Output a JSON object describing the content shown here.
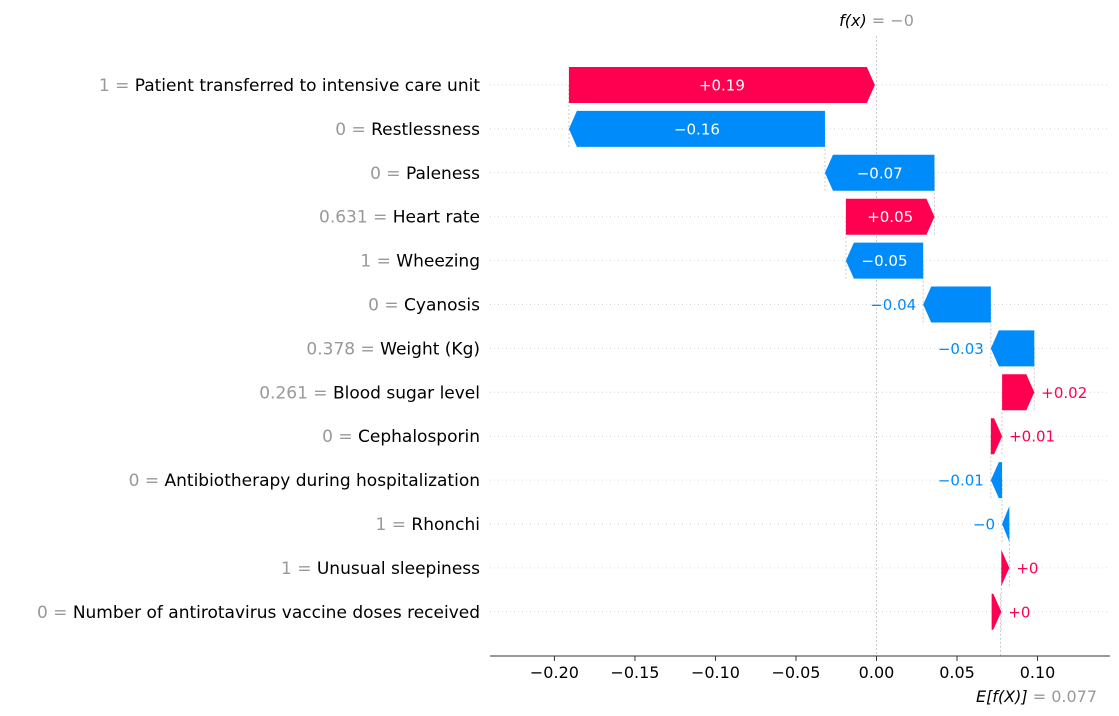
{
  "chart_data": {
    "type": "waterfall",
    "base_value": 0.077,
    "output_value": -0.0,
    "top_label": {
      "name": "f(x)",
      "value_text": "= −0"
    },
    "bottom_label": {
      "name": "E[f(X)]",
      "value_text": "= 0.077"
    },
    "x_axis": {
      "xlim": [
        -0.24,
        0.145
      ],
      "ticks": [
        {
          "value": -0.2,
          "label": "−0.20"
        },
        {
          "value": -0.15,
          "label": "−0.15"
        },
        {
          "value": -0.1,
          "label": "−0.10"
        },
        {
          "value": -0.05,
          "label": "−0.05"
        },
        {
          "value": 0.0,
          "label": "0.00"
        },
        {
          "value": 0.05,
          "label": "0.05"
        },
        {
          "value": 0.1,
          "label": "0.10"
        }
      ]
    },
    "features": [
      {
        "value_label": "1 =",
        "name": "Patient transferred to intensive care unit",
        "shap": 0.19,
        "label": "+0.19",
        "start": -0.191,
        "end": -0.001
      },
      {
        "value_label": "0 =",
        "name": "Restlessness",
        "shap": -0.16,
        "label": "−0.16",
        "start": -0.032,
        "end": -0.191
      },
      {
        "value_label": "0 =",
        "name": "Paleness",
        "shap": -0.07,
        "label": "−0.07",
        "start": 0.036,
        "end": -0.032
      },
      {
        "value_label": "0.631 =",
        "name": "Heart rate",
        "shap": 0.05,
        "label": "+0.05",
        "start": -0.019,
        "end": 0.036
      },
      {
        "value_label": "1 =",
        "name": "Wheezing",
        "shap": -0.05,
        "label": "−0.05",
        "start": 0.029,
        "end": -0.019
      },
      {
        "value_label": "0 =",
        "name": "Cyanosis",
        "shap": -0.04,
        "label": "−0.04",
        "start": 0.071,
        "end": 0.029
      },
      {
        "value_label": "0.378 =",
        "name": "Weight (Kg)",
        "shap": -0.03,
        "label": "−0.03",
        "start": 0.098,
        "end": 0.071
      },
      {
        "value_label": "0.261 =",
        "name": "Blood sugar level",
        "shap": 0.02,
        "label": "+0.02",
        "start": 0.078,
        "end": 0.098
      },
      {
        "value_label": "0 =",
        "name": "Cephalosporin",
        "shap": 0.01,
        "label": "+0.01",
        "start": 0.071,
        "end": 0.078
      },
      {
        "value_label": "0 =",
        "name": "Antibiotherapy during hospitalization",
        "shap": -0.01,
        "label": "−0.01",
        "start": 0.078,
        "end": 0.071
      },
      {
        "value_label": "1 =",
        "name": "Rhonchi",
        "shap": -0.0,
        "label": "−0",
        "start": 0.0825,
        "end": 0.078
      },
      {
        "value_label": "1 =",
        "name": "Unusual sleepiness",
        "shap": 0.0,
        "label": "+0",
        "start": 0.0775,
        "end": 0.0825
      },
      {
        "value_label": "0 =",
        "name": "Number of antirotavirus vaccine doses received",
        "shap": 0.0,
        "label": "+0",
        "start": 0.0715,
        "end": 0.0775
      }
    ],
    "colors": {
      "positive": "#ff0051",
      "negative": "#008bfb",
      "axis": "#333333",
      "grid": "#cccccc",
      "muted": "#999999"
    }
  }
}
